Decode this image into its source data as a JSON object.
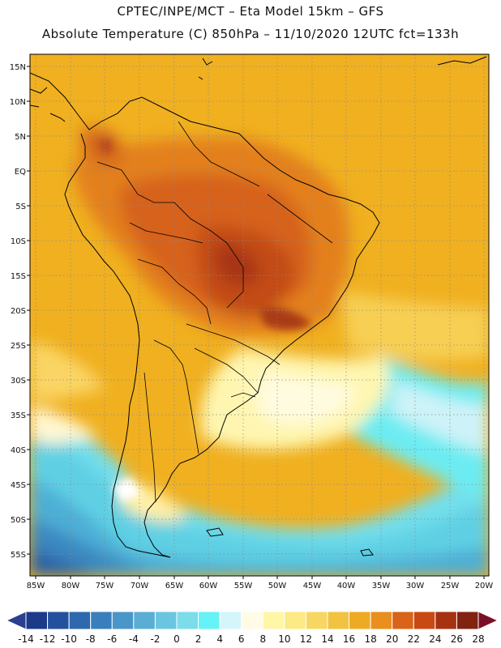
{
  "header": {
    "line1": "CPTEC/INPE/MCT –  Eta Model 15km – GFS",
    "line2": "Absolute Temperature (C) 850hPa – 11/10/2020 12UTC fct=133h"
  },
  "map": {
    "lat_labels": [
      "15N",
      "10N",
      "5N",
      "EQ",
      "5S",
      "10S",
      "15S",
      "20S",
      "25S",
      "30S",
      "35S",
      "40S",
      "45S",
      "50S",
      "55S"
    ],
    "lon_labels": [
      "85W",
      "80W",
      "75W",
      "70W",
      "65W",
      "60W",
      "55W",
      "50W",
      "45W",
      "40W",
      "35W",
      "30W",
      "25W",
      "20W"
    ]
  },
  "colorbar": {
    "labels": [
      "-14",
      "-12",
      "-10",
      "-8",
      "-6",
      "-4",
      "-2",
      "0",
      "2",
      "4",
      "6",
      "8",
      "10",
      "12",
      "14",
      "16",
      "18",
      "20",
      "22",
      "24",
      "26",
      "28"
    ],
    "colors": [
      "#1b3a8a",
      "#24519e",
      "#2e68ae",
      "#3a7fbd",
      "#4a96c8",
      "#5aadd3",
      "#6ac6e0",
      "#7bdcea",
      "#66f2f6",
      "#d4f6fb",
      "#fffbe5",
      "#fff6a6",
      "#fde985",
      "#f8d663",
      "#f2c241",
      "#efaa23",
      "#e98f1c",
      "#d96317",
      "#c84a12",
      "#a63211",
      "#822311"
    ],
    "under_color": "#2a3f8f",
    "over_color": "#7a1025"
  }
}
